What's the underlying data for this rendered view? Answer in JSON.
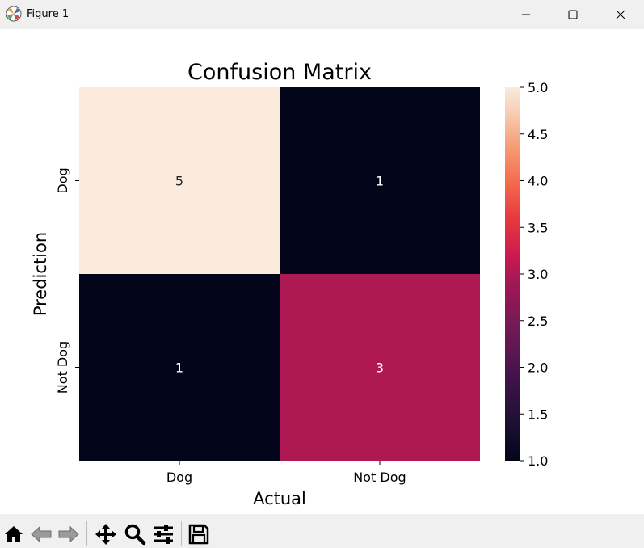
{
  "window": {
    "title": "Figure 1",
    "controls": [
      "minimize-icon",
      "maximize-icon",
      "close-icon"
    ]
  },
  "toolbar": {
    "tools": [
      "home-icon",
      "back-arrow-icon",
      "forward-arrow-icon",
      "pan-move-icon",
      "zoom-magnifier-icon",
      "configure-subplots-icon",
      "save-floppy-icon"
    ]
  },
  "chart_data": {
    "type": "heatmap",
    "title": "Confusion Matrix",
    "xlabel": "Actual",
    "ylabel": "Prediction",
    "x_categories": [
      "Dog",
      "Not Dog"
    ],
    "y_categories": [
      "Dog",
      "Not Dog"
    ],
    "values": [
      [
        5,
        1
      ],
      [
        1,
        3
      ]
    ],
    "annotations": [
      [
        "5",
        "1"
      ],
      [
        "1",
        "3"
      ]
    ],
    "colormap": "rocket",
    "colorbar": {
      "range": [
        1.0,
        5.0
      ],
      "ticks": [
        "1.0",
        "1.5",
        "2.0",
        "2.5",
        "3.0",
        "3.5",
        "4.0",
        "4.5",
        "5.0"
      ]
    },
    "colors": {
      "high": "#faebdd",
      "mid": "#cb1b4f",
      "low": "#03051a"
    }
  }
}
